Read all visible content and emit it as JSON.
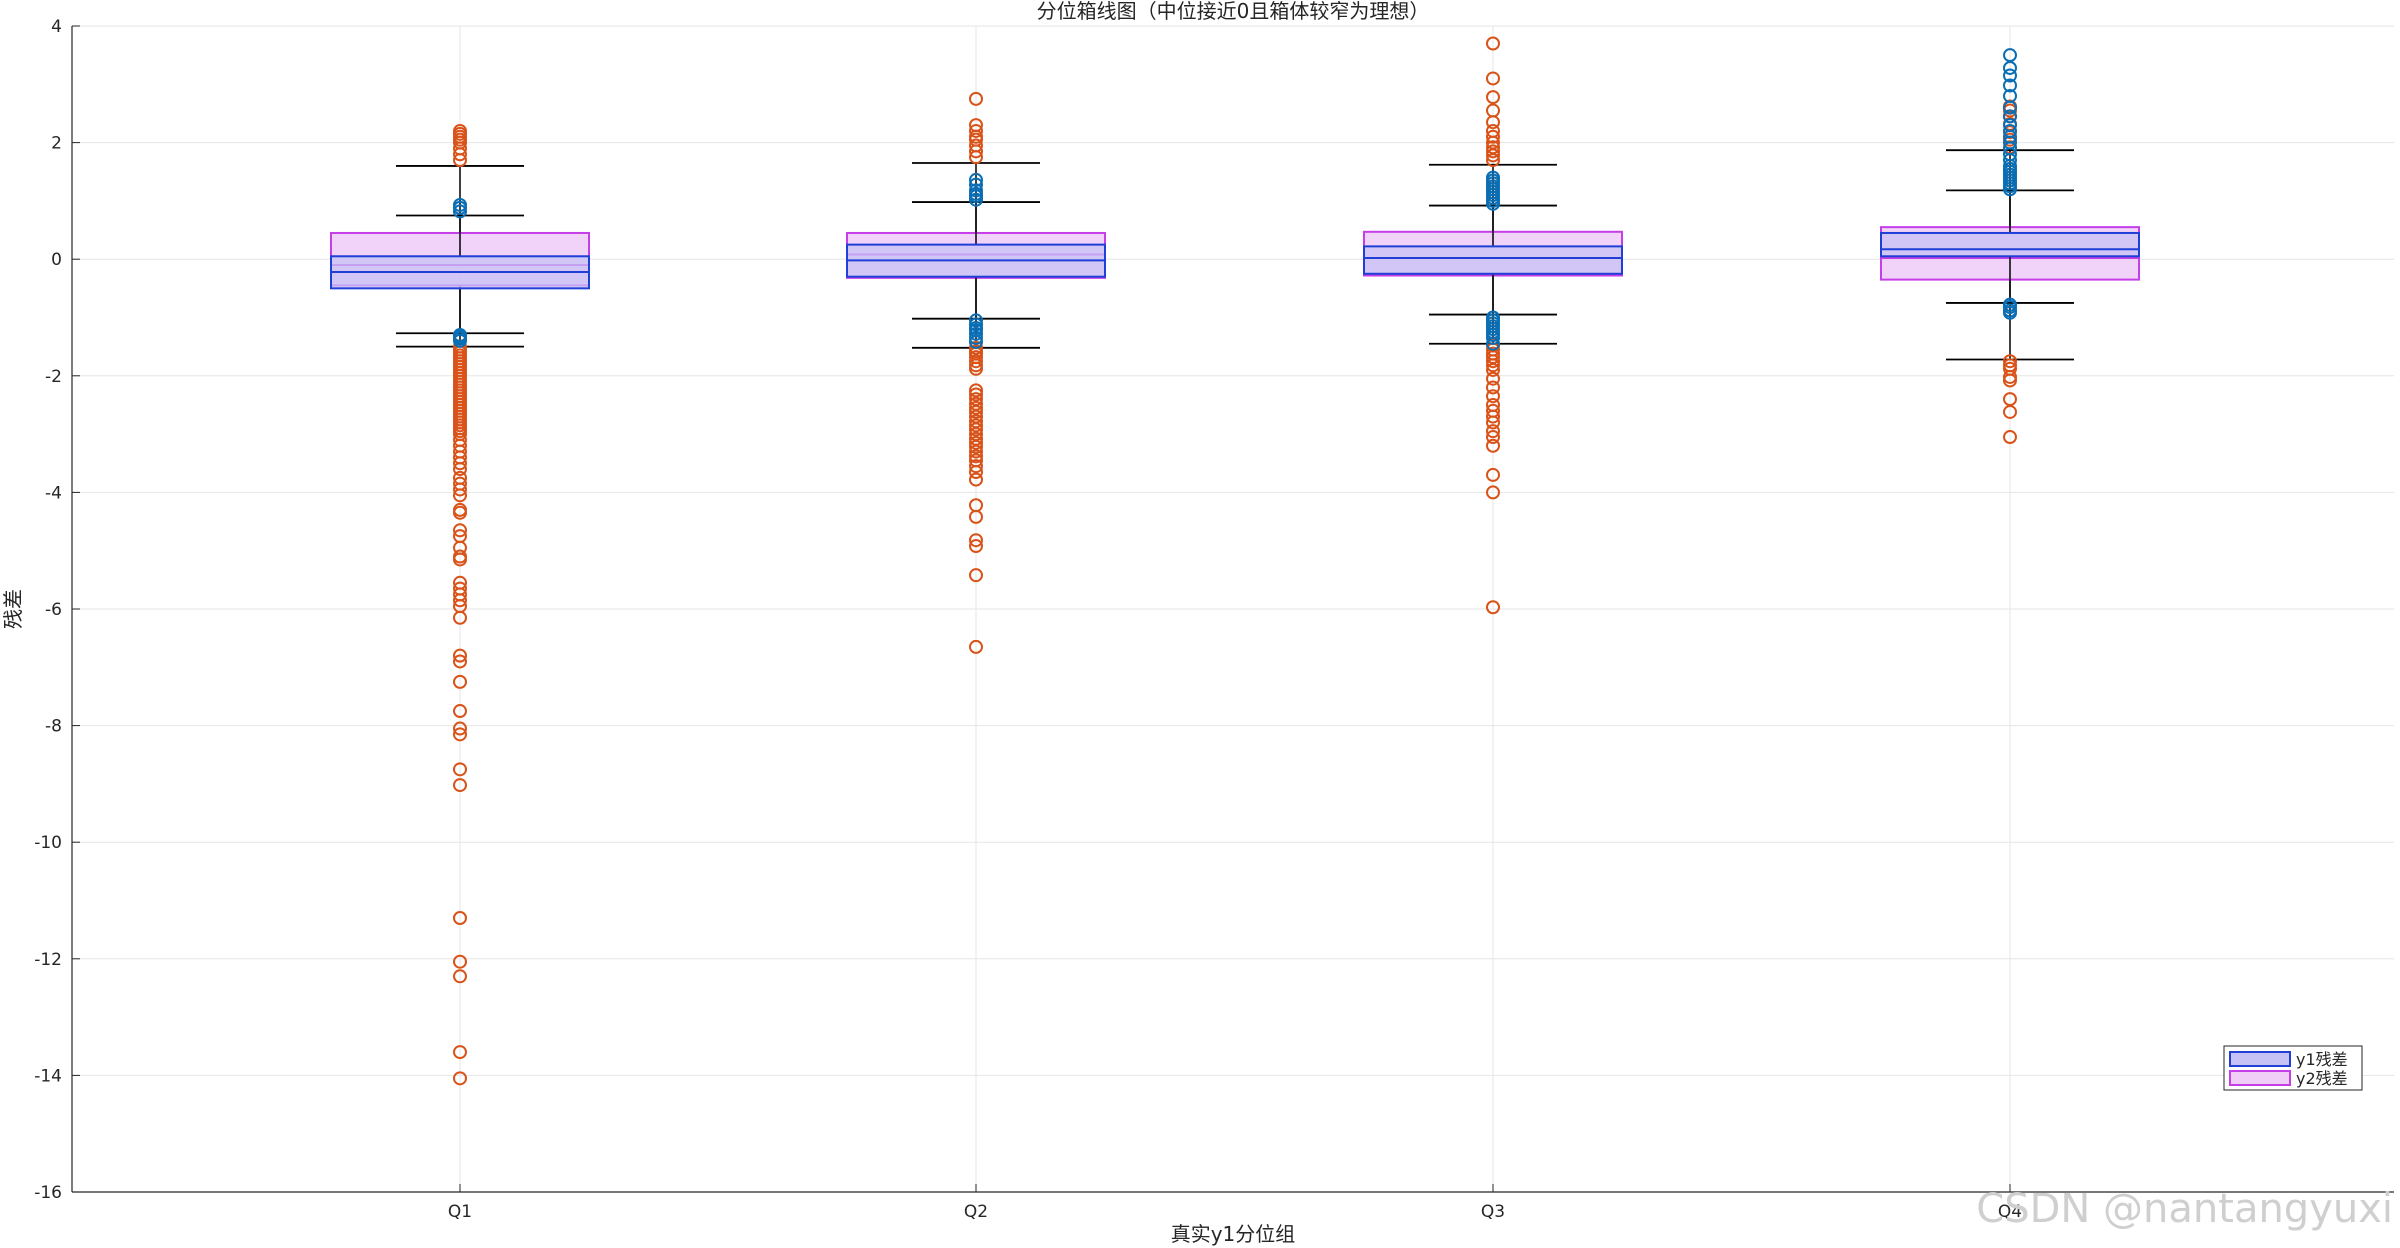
{
  "chart_data": {
    "type": "box",
    "title": "分位箱线图（中位接近0且箱体较窄为理想）",
    "xlabel": "真实y1分位组",
    "ylabel": "残差",
    "categories": [
      "Q1",
      "Q2",
      "Q3",
      "Q4"
    ],
    "ylim": [
      -16,
      4
    ],
    "yticks": [
      4,
      2,
      0,
      -2,
      -4,
      -6,
      -8,
      -10,
      -12,
      -14,
      -16
    ],
    "grid": true,
    "legend_position": "bottom-right",
    "series": [
      {
        "name": "y1残差",
        "color": "#1f3fd6",
        "fill": "#c6c2f5",
        "outlier_color": "#0a6eb4",
        "boxes": [
          {
            "category": "Q1",
            "q1": -0.5,
            "median": -0.22,
            "q3": 0.05,
            "whisker_low": -1.27,
            "whisker_high": 0.75,
            "outliers": [
              0.82,
              0.88,
              0.93,
              -1.3,
              -1.33,
              -1.36,
              -1.4
            ]
          },
          {
            "category": "Q2",
            "q1": -0.3,
            "median": -0.02,
            "q3": 0.25,
            "whisker_low": -1.02,
            "whisker_high": 0.98,
            "outliers": [
              1.02,
              1.08,
              1.12,
              1.18,
              1.28,
              1.36,
              -1.05,
              -1.12,
              -1.18,
              -1.22,
              -1.28,
              -1.35,
              -1.42
            ]
          },
          {
            "category": "Q3",
            "q1": -0.25,
            "median": 0.02,
            "q3": 0.22,
            "whisker_low": -0.95,
            "whisker_high": 0.92,
            "outliers": [
              0.95,
              1.0,
              1.05,
              1.1,
              1.15,
              1.2,
              1.25,
              1.3,
              1.35,
              1.4,
              -1.0,
              -1.05,
              -1.1,
              -1.15,
              -1.2,
              -1.25,
              -1.3,
              -1.35,
              -1.45
            ]
          },
          {
            "category": "Q4",
            "q1": 0.05,
            "median": 0.17,
            "q3": 0.45,
            "whisker_low": -0.75,
            "whisker_high": 1.18,
            "outliers": [
              1.2,
              1.25,
              1.3,
              1.35,
              1.4,
              1.45,
              1.5,
              1.55,
              1.6,
              1.7,
              1.8,
              1.9,
              2.0,
              2.1,
              2.2,
              2.3,
              2.45,
              2.6,
              2.8,
              2.98,
              3.15,
              3.28,
              3.5,
              -0.78,
              -0.82,
              -0.88,
              -0.92
            ]
          }
        ]
      },
      {
        "name": "y2残差",
        "color": "#c63ee8",
        "fill": "#efcdf7",
        "outlier_color": "#d95319",
        "boxes": [
          {
            "category": "Q1",
            "q1": -0.45,
            "median": -0.1,
            "q3": 0.45,
            "whisker_low": -1.5,
            "whisker_high": 1.6,
            "outliers": [
              1.7,
              1.8,
              1.9,
              2.0,
              2.05,
              2.1,
              2.15,
              2.2,
              -1.5,
              -1.55,
              -1.6,
              -1.65,
              -1.7,
              -1.75,
              -1.8,
              -1.85,
              -1.9,
              -1.95,
              -2.0,
              -2.05,
              -2.1,
              -2.15,
              -2.2,
              -2.25,
              -2.3,
              -2.35,
              -2.4,
              -2.45,
              -2.5,
              -2.55,
              -2.6,
              -2.65,
              -2.7,
              -2.75,
              -2.8,
              -2.85,
              -2.9,
              -2.95,
              -3.0,
              -3.1,
              -3.2,
              -3.3,
              -3.4,
              -3.5,
              -3.6,
              -3.75,
              -3.85,
              -3.95,
              -4.05,
              -4.3,
              -4.35,
              -4.65,
              -4.75,
              -4.95,
              -5.1,
              -5.15,
              -5.55,
              -5.65,
              -5.75,
              -5.85,
              -5.95,
              -6.15,
              -6.8,
              -6.9,
              -7.25,
              -7.75,
              -8.05,
              -8.15,
              -8.75,
              -9.02,
              -11.3,
              -12.05,
              -12.3,
              -13.6,
              -14.05
            ]
          },
          {
            "category": "Q2",
            "q1": -0.32,
            "median": 0.08,
            "q3": 0.45,
            "whisker_low": -1.52,
            "whisker_high": 1.65,
            "outliers": [
              1.75,
              1.85,
              1.95,
              2.05,
              2.1,
              2.2,
              2.3,
              2.75,
              -1.52,
              -1.58,
              -1.62,
              -1.68,
              -1.75,
              -1.82,
              -1.88,
              -2.25,
              -2.32,
              -2.4,
              -2.48,
              -2.55,
              -2.62,
              -2.7,
              -2.78,
              -2.85,
              -2.92,
              -3.0,
              -3.08,
              -3.15,
              -3.22,
              -3.3,
              -3.38,
              -3.45,
              -3.55,
              -3.65,
              -3.78,
              -4.22,
              -4.42,
              -4.82,
              -4.92,
              -5.42,
              -6.65
            ]
          },
          {
            "category": "Q3",
            "q1": -0.28,
            "median": 0.02,
            "q3": 0.47,
            "whisker_low": -1.45,
            "whisker_high": 1.62,
            "outliers": [
              1.7,
              1.78,
              1.85,
              1.92,
              2.0,
              2.1,
              2.2,
              2.35,
              2.55,
              2.78,
              3.1,
              3.7,
              -1.48,
              -1.55,
              -1.62,
              -1.68,
              -1.75,
              -1.82,
              -1.9,
              -2.05,
              -2.2,
              -2.35,
              -2.5,
              -2.6,
              -2.7,
              -2.8,
              -2.95,
              -3.05,
              -3.2,
              -3.7,
              -4.0,
              -5.97
            ]
          },
          {
            "category": "Q4",
            "q1": -0.35,
            "median": 0.02,
            "q3": 0.55,
            "whisker_low": -1.72,
            "whisker_high": 1.87,
            "outliers": [
              1.92,
              2.05,
              2.18,
              2.32,
              2.45,
              2.55,
              2.62,
              -1.75,
              -1.82,
              -1.88,
              -2.02,
              -2.08,
              -2.4,
              -2.62,
              -3.05
            ]
          }
        ]
      }
    ]
  },
  "watermark": "CSDN @nantangyuxi"
}
